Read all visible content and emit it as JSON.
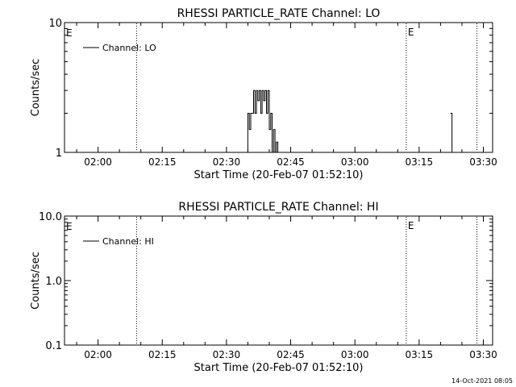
{
  "footer_timestamp": "14-Oct-2021 08:05",
  "chart_data": [
    {
      "type": "line",
      "title": "RHESSI PARTICLE_RATE Channel: LO",
      "xlabel": "Start Time (20-Feb-07 01:52:10)",
      "ylabel": "Counts/sec",
      "yscale": "log",
      "ylim": [
        1,
        10
      ],
      "xlim": [
        "01:52:10",
        "03:32:10"
      ],
      "xticks": [
        "02:00",
        "02:15",
        "02:30",
        "02:45",
        "03:00",
        "03:15",
        "03:30"
      ],
      "yticks": [
        {
          "value": 1,
          "label": "1"
        },
        {
          "value": 10,
          "label": "10"
        }
      ],
      "legend_position": "top-left",
      "series": [
        {
          "name": "Channel: LO",
          "points": [
            [
              "02:34:40",
              1
            ],
            [
              "02:35:00",
              2
            ],
            [
              "02:35:20",
              1.5
            ],
            [
              "02:35:40",
              2
            ],
            [
              "02:36:00",
              2
            ],
            [
              "02:36:20",
              3
            ],
            [
              "02:36:40",
              2
            ],
            [
              "02:37:00",
              3
            ],
            [
              "02:37:20",
              2.5
            ],
            [
              "02:37:40",
              3
            ],
            [
              "02:38:00",
              2
            ],
            [
              "02:38:20",
              3
            ],
            [
              "02:38:40",
              2.5
            ],
            [
              "02:39:00",
              3
            ],
            [
              "02:39:20",
              2
            ],
            [
              "02:39:40",
              3
            ],
            [
              "02:40:00",
              1.5
            ],
            [
              "02:40:20",
              2
            ],
            [
              "02:40:40",
              1
            ],
            [
              "02:41:00",
              1.5
            ],
            [
              "02:41:20",
              1
            ],
            [
              "02:41:40",
              1.2
            ],
            [
              "02:42:00",
              1
            ]
          ]
        },
        {
          "name": "",
          "points": [
            [
              "03:22:20",
              2
            ],
            [
              "03:22:40",
              1
            ]
          ]
        }
      ],
      "markers": [
        {
          "time": "02:09:00",
          "label": ""
        },
        {
          "time": "03:12:00",
          "label": "E"
        },
        {
          "time": "03:28:30",
          "label": ""
        }
      ],
      "edge_label": "E"
    },
    {
      "type": "line",
      "title": "RHESSI PARTICLE_RATE Channel: HI",
      "xlabel": "Start Time (20-Feb-07 01:52:10)",
      "ylabel": "Counts/sec",
      "yscale": "log",
      "ylim": [
        0.1,
        10
      ],
      "xlim": [
        "01:52:10",
        "03:32:10"
      ],
      "xticks": [
        "02:00",
        "02:15",
        "02:30",
        "02:45",
        "03:00",
        "03:15",
        "03:30"
      ],
      "yticks": [
        {
          "value": 0.1,
          "label": "0.1"
        },
        {
          "value": 1,
          "label": "1.0"
        },
        {
          "value": 10,
          "label": "10.0"
        }
      ],
      "legend_position": "top-left",
      "series": [
        {
          "name": "Channel: HI",
          "points": []
        }
      ],
      "markers": [
        {
          "time": "02:09:00",
          "label": ""
        },
        {
          "time": "03:12:00",
          "label": "E"
        },
        {
          "time": "03:28:30",
          "label": ""
        }
      ],
      "edge_label": "E"
    }
  ]
}
